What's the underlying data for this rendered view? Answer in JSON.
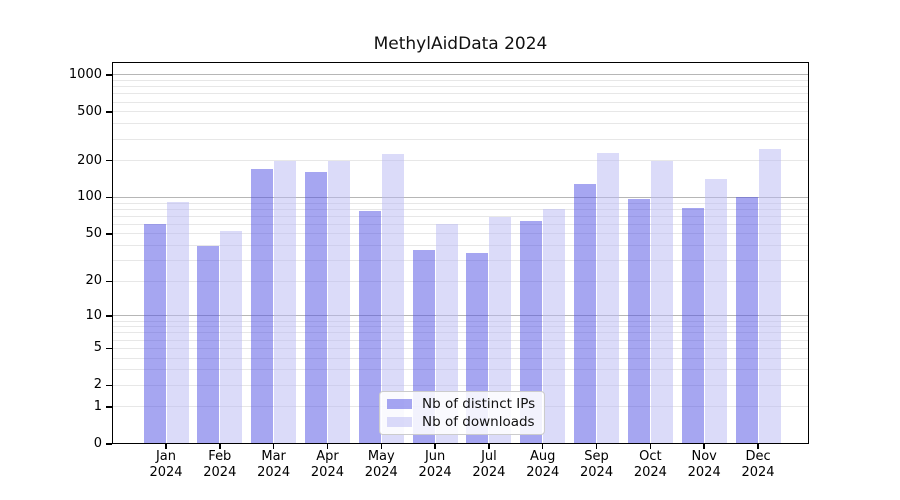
{
  "title": "MethylAidData 2024",
  "chart_data": {
    "type": "bar",
    "title": "MethylAidData 2024",
    "yscale": "log10(1+x)",
    "categories": [
      "Jan",
      "Feb",
      "Mar",
      "Apr",
      "May",
      "Jun",
      "Jul",
      "Aug",
      "Sep",
      "Oct",
      "Nov",
      "Dec"
    ],
    "x_tick_second_line": "2024",
    "series": [
      {
        "name": "Nb of distinct IPs",
        "color": "#a6a6f1",
        "rgba": "rgba(77,77,228,0.5)",
        "values": [
          61,
          40,
          172,
          162,
          77,
          37,
          35,
          64,
          130,
          97,
          82,
          100
        ]
      },
      {
        "name": "Nb of downloads",
        "color": "#dbdbf9",
        "rgba": "rgba(184,184,244,0.5)",
        "values": [
          92,
          53,
          200,
          198,
          229,
          60,
          69,
          80,
          232,
          199,
          143,
          250
        ]
      }
    ],
    "y_ticks": [
      0,
      1,
      2,
      5,
      10,
      20,
      50,
      100,
      200,
      500,
      1000
    ],
    "y_major_gridlines": [
      10,
      100,
      1000
    ],
    "y_minor_gridlines": [
      1,
      2,
      3,
      4,
      5,
      6,
      7,
      8,
      9,
      20,
      30,
      40,
      50,
      60,
      70,
      80,
      90,
      200,
      300,
      400,
      500,
      600,
      700,
      800,
      900
    ],
    "ylim": [
      0,
      1310
    ],
    "grid": true,
    "legend": {
      "position": "lower center",
      "entries": [
        "Nb of distinct IPs",
        "Nb of downloads"
      ]
    },
    "colors": {
      "axis": "#000000",
      "major_grid": "#b6b6b6",
      "minor_grid": "#e7e7e7",
      "legend_border": "#cccccc",
      "text": "#000000"
    }
  }
}
